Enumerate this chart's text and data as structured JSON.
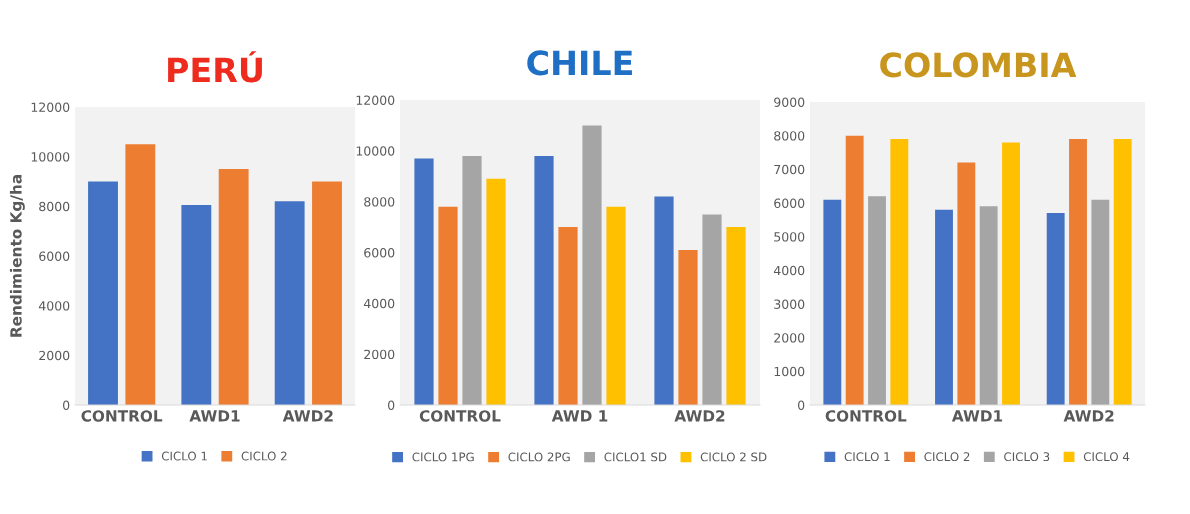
{
  "chart_data": [
    {
      "type": "bar",
      "title": "PERÚ",
      "ylabel": "Rendimiento Kg/ha",
      "categories": [
        "CONTROL",
        "AWD1",
        "AWD2"
      ],
      "ylim": [
        0,
        12000
      ],
      "yticks": [
        0,
        2000,
        4000,
        6000,
        8000,
        10000,
        12000
      ],
      "legend": "bottom",
      "series": [
        {
          "name": "CICLO 1",
          "color": "#4472c4",
          "values": [
            9000,
            8050,
            8200
          ]
        },
        {
          "name": "CICLO 2",
          "color": "#ed7d31",
          "values": [
            10500,
            9500,
            9000
          ]
        }
      ]
    },
    {
      "type": "bar",
      "title": "CHILE",
      "categories": [
        "CONTROL",
        "AWD 1",
        "AWD2"
      ],
      "ylim": [
        0,
        12000
      ],
      "yticks": [
        0,
        2000,
        4000,
        6000,
        8000,
        10000,
        12000
      ],
      "legend": "bottom",
      "series": [
        {
          "name": "CICLO 1PG",
          "color": "#4472c4",
          "values": [
            9700,
            9800,
            8200
          ]
        },
        {
          "name": "CICLO 2PG",
          "color": "#ed7d31",
          "values": [
            7800,
            7000,
            6100
          ]
        },
        {
          "name": "CICLO1 SD",
          "color": "#a5a5a5",
          "values": [
            9800,
            11000,
            7500
          ]
        },
        {
          "name": "CICLO 2 SD",
          "color": "#ffc000",
          "values": [
            8900,
            7800,
            7000
          ]
        }
      ]
    },
    {
      "type": "bar",
      "title": "COLOMBIA",
      "categories": [
        "CONTROL",
        "AWD1",
        "AWD2"
      ],
      "ylim": [
        0,
        9000
      ],
      "yticks": [
        0,
        1000,
        2000,
        3000,
        4000,
        5000,
        6000,
        7000,
        8000,
        9000
      ],
      "legend": "bottom",
      "series": [
        {
          "name": "CICLO 1",
          "color": "#4472c4",
          "values": [
            6100,
            5800,
            5700
          ]
        },
        {
          "name": "CICLO 2",
          "color": "#ed7d31",
          "values": [
            8000,
            7200,
            7900
          ]
        },
        {
          "name": "CICLO 3",
          "color": "#a5a5a5",
          "values": [
            6200,
            5900,
            6100
          ]
        },
        {
          "name": "CICLO 4",
          "color": "#ffc000",
          "values": [
            7900,
            7800,
            7900
          ]
        }
      ]
    }
  ]
}
